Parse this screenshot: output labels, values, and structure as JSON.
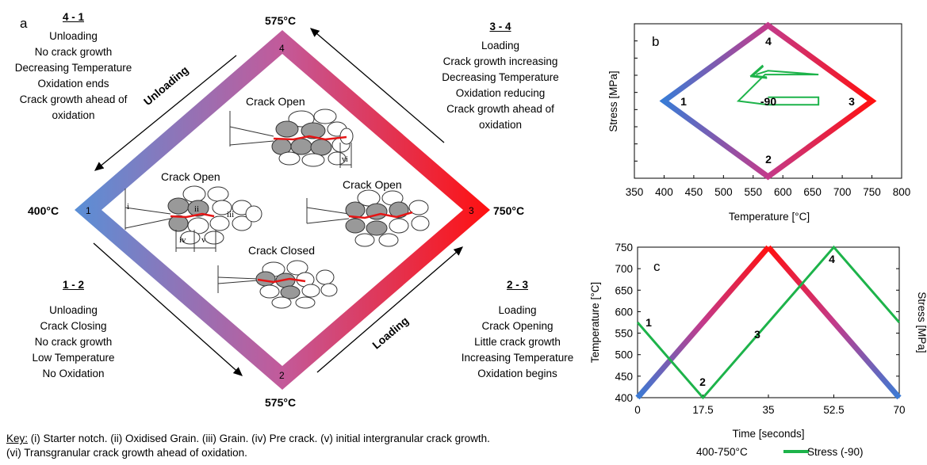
{
  "panel_a": {
    "letter": "a",
    "temp_top": "575°C",
    "temp_bottom": "575°C",
    "temp_left": "400°C",
    "temp_right": "750°C",
    "node_labels": [
      "1",
      "2",
      "3",
      "4"
    ],
    "arrow_unloading": "Unloading",
    "arrow_loading": "Loading",
    "blocks": {
      "b41": {
        "head": "4 - 1",
        "lines": [
          "Unloading",
          "No crack growth",
          "Decreasing Temperature",
          "Oxidation ends",
          "Crack growth ahead of",
          "oxidation"
        ]
      },
      "b34": {
        "head": "3 - 4",
        "lines": [
          "Loading",
          "Crack growth increasing",
          "Decreasing Temperature",
          "Oxidation reducing",
          "Crack growth ahead of",
          "oxidation"
        ]
      },
      "b12": {
        "head": "1 - 2",
        "lines": [
          "Unloading",
          "Crack Closing",
          "No crack growth",
          "Low Temperature",
          "No Oxidation"
        ]
      },
      "b23": {
        "head": "2 - 3",
        "lines": [
          "Loading",
          "Crack Opening",
          "Little crack growth",
          "Increasing Temperature",
          "Oxidation begins"
        ]
      }
    },
    "crack_labels": {
      "top": "Crack Open",
      "left": "Crack Open",
      "right": "Crack Open",
      "bottom": "Crack Closed"
    },
    "roman": {
      "i": "i",
      "ii": "ii",
      "iii": "iii",
      "iv": "iv",
      "v": "v",
      "vi": "vi"
    }
  },
  "panel_b": {
    "letter": "b",
    "point_labels": [
      "1",
      "2",
      "3",
      "4"
    ],
    "center_label": "-90"
  },
  "panel_c": {
    "letter": "c",
    "point_labels": [
      "1",
      "2",
      "3",
      "4"
    ]
  },
  "chart_data": [
    {
      "type": "line",
      "panel": "b",
      "xlabel": "Temperature [°C]",
      "ylabel": "Stress [MPa]",
      "xlim": [
        350,
        800
      ],
      "xticks": [
        350,
        400,
        450,
        500,
        550,
        600,
        650,
        700,
        750,
        800
      ],
      "series": [
        {
          "x": [
            400,
            575,
            750,
            575,
            400
          ],
          "y": [
            0,
            -1,
            0,
            1,
            0
          ],
          "color_start": "#3a7bd5",
          "color_end": "#ff1a1a"
        },
        {
          "x": [
            575,
            660,
            660,
            575,
            525,
            570,
            660,
            575,
            555
          ],
          "y": [
            0.05,
            0.05,
            -0.05,
            -0.05,
            0,
            0.35,
            0.35,
            0.4,
            0.35
          ],
          "color": "#1db34a"
        }
      ]
    },
    {
      "type": "line",
      "panel": "c",
      "xlabel": "Time [seconds]",
      "ylabel": "Temperature [°C]",
      "ylabel_right": "Stress [MPa]",
      "xlim": [
        0,
        70
      ],
      "ylim": [
        400,
        750
      ],
      "xticks": [
        "0",
        "17.5",
        "35",
        "52.5",
        "70"
      ],
      "yticks": [
        400,
        450,
        500,
        550,
        600,
        650,
        700,
        750
      ],
      "series": [
        {
          "name": "400-750°C",
          "x": [
            0,
            35,
            70
          ],
          "y": [
            400,
            750,
            400
          ],
          "color_start": "#3a7bd5",
          "color_end": "#ff1a1a"
        },
        {
          "name": "Stress (-90)",
          "x": [
            0,
            17.5,
            52.5,
            70
          ],
          "y": [
            575,
            400,
            750,
            575
          ],
          "color": "#1db34a"
        }
      ],
      "legend": "bottom"
    }
  ],
  "key": {
    "label": "Key:",
    "text1": " (i) Starter notch. (ii) Oxidised Grain. (iii) Grain. (iv) Pre crack. (v) initial intergranular crack growth.",
    "text2": "(vi) Transgranular crack growth ahead of oxidation."
  }
}
